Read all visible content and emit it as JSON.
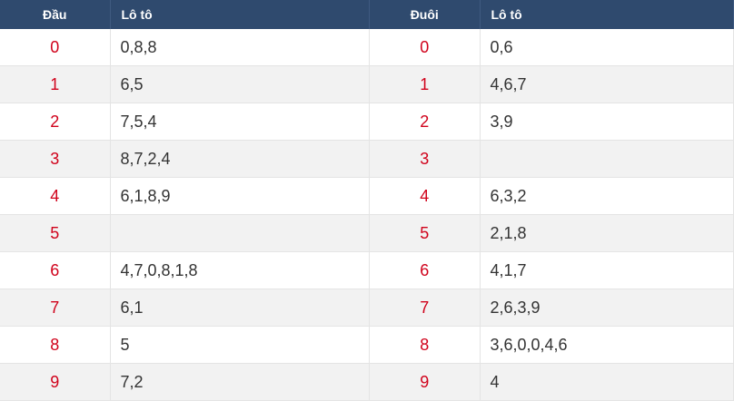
{
  "dau_table": {
    "header_digit": "Đầu",
    "header_loto": "Lô tô",
    "rows": [
      {
        "digit": "0",
        "loto": "0,8,8"
      },
      {
        "digit": "1",
        "loto": "6,5"
      },
      {
        "digit": "2",
        "loto": "7,5,4"
      },
      {
        "digit": "3",
        "loto": "8,7,2,4"
      },
      {
        "digit": "4",
        "loto": "6,1,8,9"
      },
      {
        "digit": "5",
        "loto": ""
      },
      {
        "digit": "6",
        "loto": "4,7,0,8,1,8"
      },
      {
        "digit": "7",
        "loto": "6,1"
      },
      {
        "digit": "8",
        "loto": "5"
      },
      {
        "digit": "9",
        "loto": "7,2"
      }
    ]
  },
  "duoi_table": {
    "header_digit": "Đuôi",
    "header_loto": "Lô tô",
    "rows": [
      {
        "digit": "0",
        "loto": "0,6"
      },
      {
        "digit": "1",
        "loto": "4,6,7"
      },
      {
        "digit": "2",
        "loto": "3,9"
      },
      {
        "digit": "3",
        "loto": ""
      },
      {
        "digit": "4",
        "loto": "6,3,2"
      },
      {
        "digit": "5",
        "loto": "2,1,8"
      },
      {
        "digit": "6",
        "loto": "4,1,7"
      },
      {
        "digit": "7",
        "loto": "2,6,3,9"
      },
      {
        "digit": "8",
        "loto": "3,6,0,0,4,6"
      },
      {
        "digit": "9",
        "loto": "4"
      }
    ]
  },
  "colors": {
    "header_bg": "#2f4a6e",
    "digit": "#d0021b",
    "stripe": "#f2f2f2"
  }
}
